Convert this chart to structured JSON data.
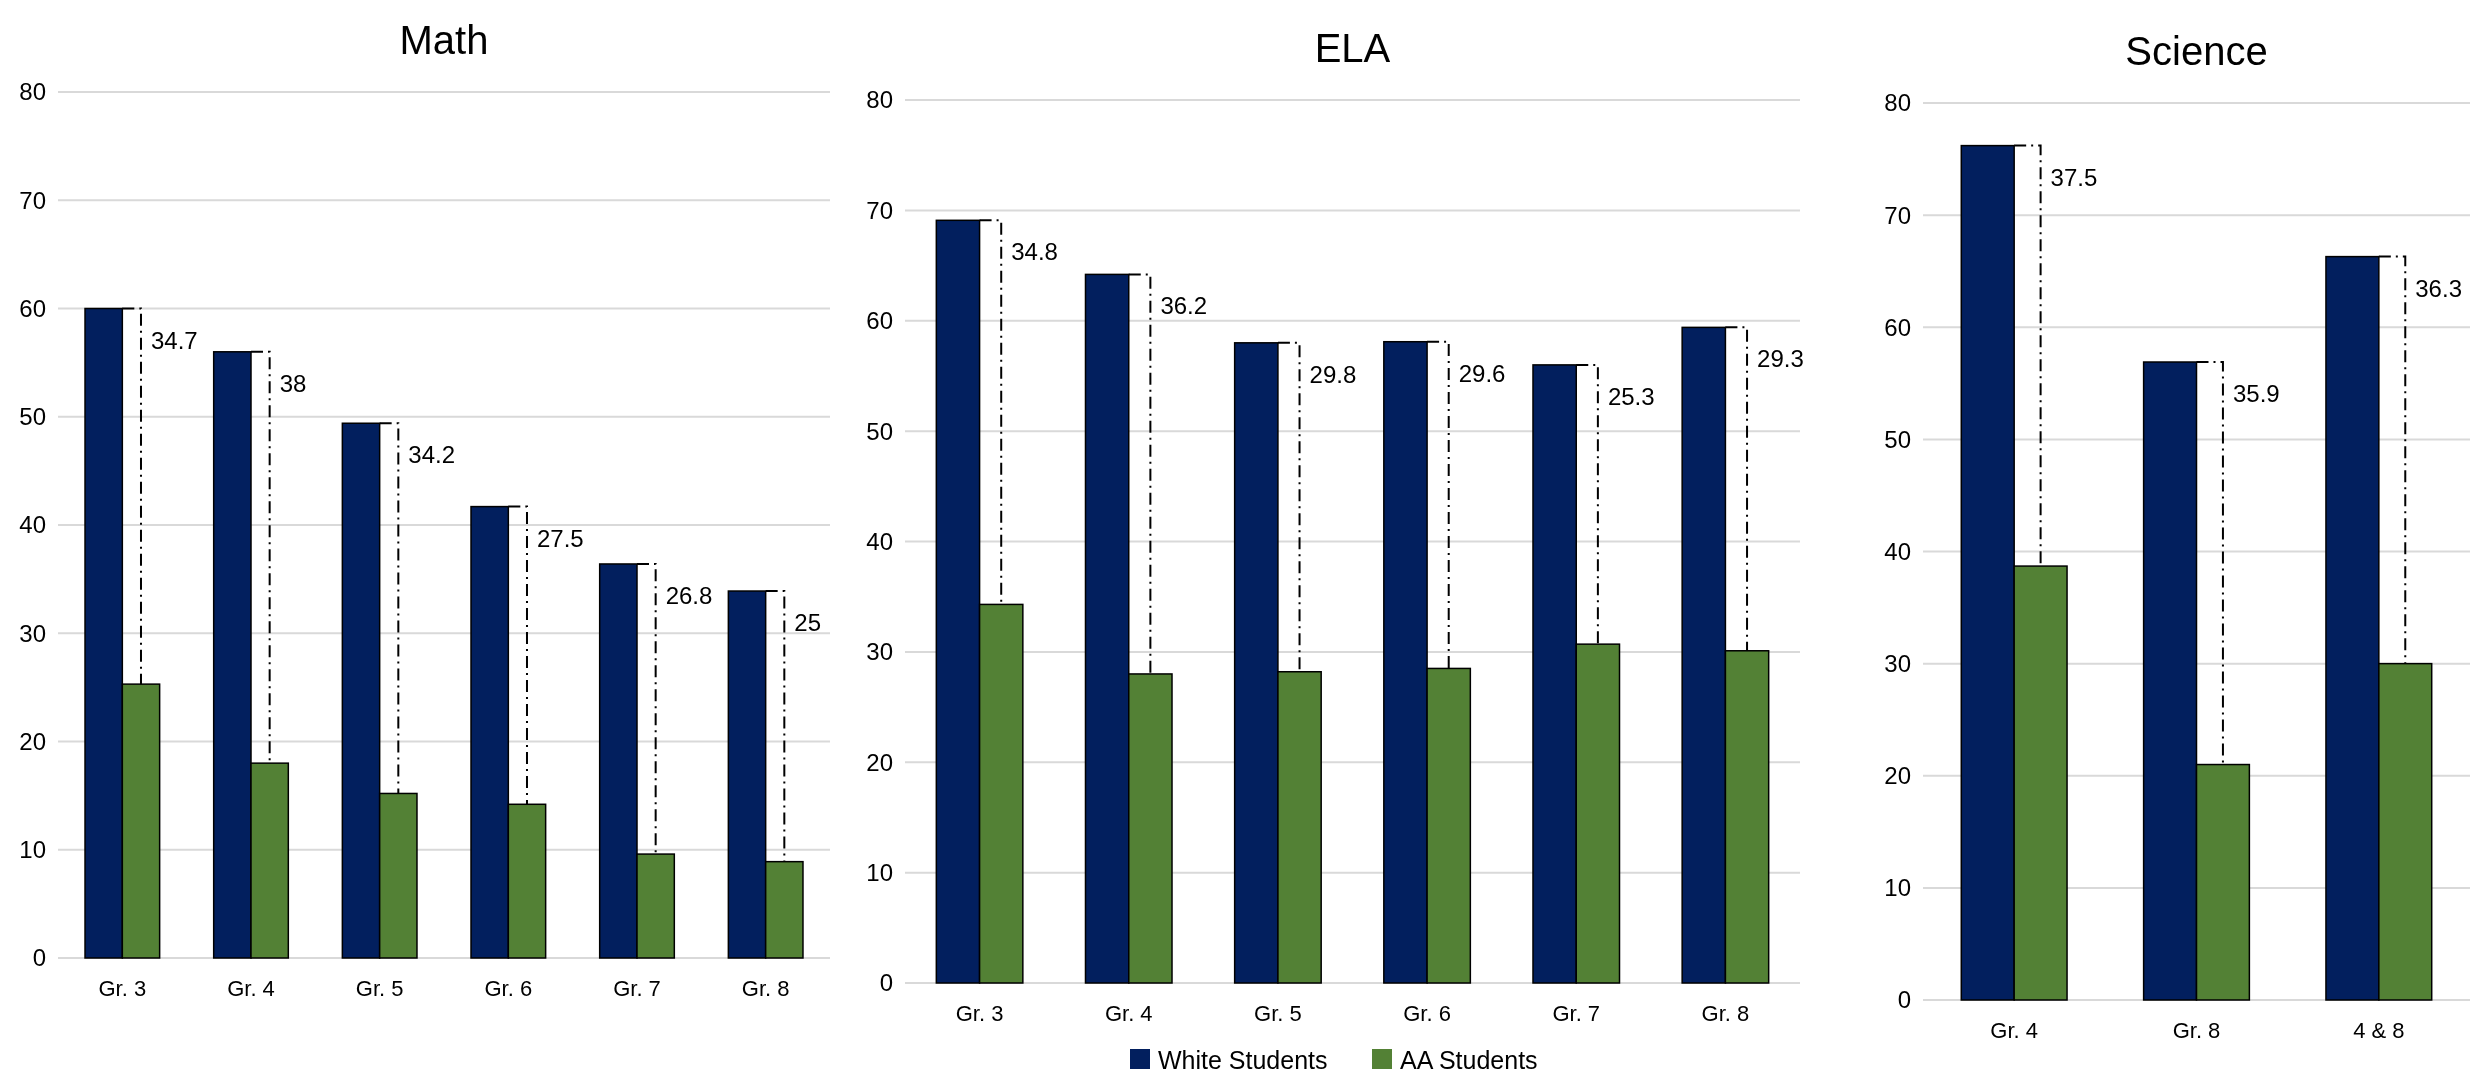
{
  "chart_data": [
    {
      "type": "bar",
      "title": "Math",
      "categories": [
        "Gr. 3",
        "Gr. 4",
        "Gr. 5",
        "Gr. 6",
        "Gr. 7",
        "Gr. 8"
      ],
      "series": [
        {
          "color": "#021f5e",
          "values": [
            60,
            56,
            49.4,
            41.7,
            36.4,
            33.9
          ]
        },
        {
          "color": "#538135",
          "values": [
            25.3,
            18,
            15.2,
            14.2,
            9.6,
            8.9
          ]
        }
      ],
      "ylim": [
        0,
        80
      ],
      "yticks": [
        0,
        10,
        20,
        30,
        40,
        50,
        60,
        70,
        80
      ],
      "grid": "y",
      "legend": false,
      "annotations": [
        {
          "text": "34.7",
          "x": "Gr. 3",
          "y": 60
        },
        {
          "text": "38",
          "x": "Gr. 4",
          "y": 56
        },
        {
          "text": "34.2",
          "x": "Gr. 5",
          "y": 49.4
        },
        {
          "text": "27.5",
          "x": "Gr. 6",
          "y": 41.7
        },
        {
          "text": "26.8",
          "x": "Gr. 7",
          "y": 36.4
        },
        {
          "text": "25",
          "x": "Gr. 8",
          "y": 33.9
        }
      ]
    },
    {
      "type": "bar",
      "title": "ELA",
      "categories": [
        "Gr. 3",
        "Gr. 4",
        "Gr. 5",
        "Gr. 6",
        "Gr. 7",
        "Gr. 8"
      ],
      "series": [
        {
          "name": "White Students",
          "color": "#021f5e",
          "values": [
            69.1,
            64.2,
            58,
            58.1,
            56,
            59.4
          ]
        },
        {
          "name": "AA Students",
          "color": "#538135",
          "values": [
            34.3,
            28,
            28.2,
            28.5,
            30.7,
            30.1
          ]
        }
      ],
      "ylim": [
        0,
        80
      ],
      "yticks": [
        0,
        10,
        20,
        30,
        40,
        50,
        60,
        70,
        80
      ],
      "grid": "y",
      "legend": "bottom",
      "annotations": [
        {
          "text": "34.8",
          "x": "Gr. 3",
          "y": 69.1
        },
        {
          "text": "36.2",
          "x": "Gr. 4",
          "y": 64.2
        },
        {
          "text": "29.8",
          "x": "Gr. 5",
          "y": 58
        },
        {
          "text": "29.6",
          "x": "Gr. 6",
          "y": 58.1
        },
        {
          "text": "25.3",
          "x": "Gr. 7",
          "y": 56
        },
        {
          "text": "29.3",
          "x": "Gr. 8",
          "y": 59.4
        }
      ]
    },
    {
      "type": "bar",
      "title": "Science",
      "categories": [
        "Gr. 4",
        "Gr. 8",
        "4 & 8"
      ],
      "series": [
        {
          "color": "#021f5e",
          "values": [
            76.2,
            56.9,
            66.3
          ]
        },
        {
          "color": "#538135",
          "values": [
            38.7,
            21,
            30
          ]
        }
      ],
      "ylim": [
        0,
        80
      ],
      "yticks": [
        0,
        10,
        20,
        30,
        40,
        50,
        60,
        70,
        80
      ],
      "grid": "y",
      "legend": false,
      "annotations": [
        {
          "text": "37.5",
          "x": "Gr. 4",
          "y": 76.2
        },
        {
          "text": "35.9",
          "x": "Gr. 8",
          "y": 56.9
        },
        {
          "text": "36.3",
          "x": "4 & 8",
          "y": 66.3
        }
      ]
    }
  ]
}
